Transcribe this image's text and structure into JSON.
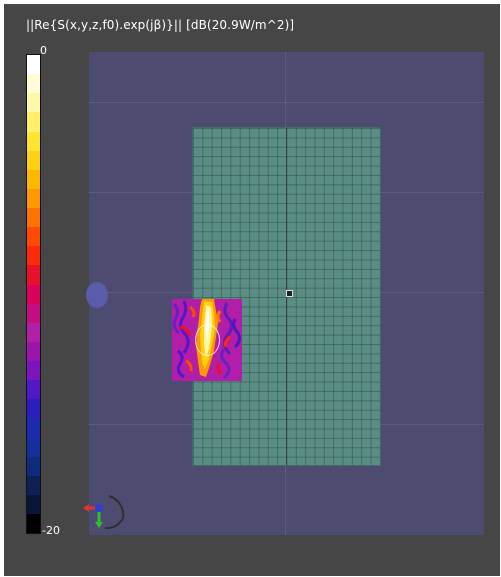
{
  "viewport": {
    "title": "||Re{S(x,y,z,f0).exp(jβ)}|| [dB(20.9W/m^2)]"
  },
  "colorbar": {
    "max_label": "0",
    "min_label": "-20",
    "colors": [
      "#ffffff",
      "#fffcd8",
      "#fff7a8",
      "#ffef6a",
      "#ffe531",
      "#ffd112",
      "#ffb700",
      "#ff9900",
      "#ff7300",
      "#ff4a00",
      "#ff2a0a",
      "#e8102b",
      "#d9005a",
      "#c40d83",
      "#b21ea8",
      "#9a14ad",
      "#7b14bd",
      "#5218c6",
      "#2c1dbf",
      "#1c2aae",
      "#15309e",
      "#102a7c",
      "#0d2058",
      "#091638",
      "#000000"
    ]
  },
  "scene": {
    "phantom_color": "#5a8e85",
    "background_color": "#4d4b70",
    "source_color": "#5a5cab"
  },
  "icons": {
    "axes": "axes-triad-icon"
  }
}
